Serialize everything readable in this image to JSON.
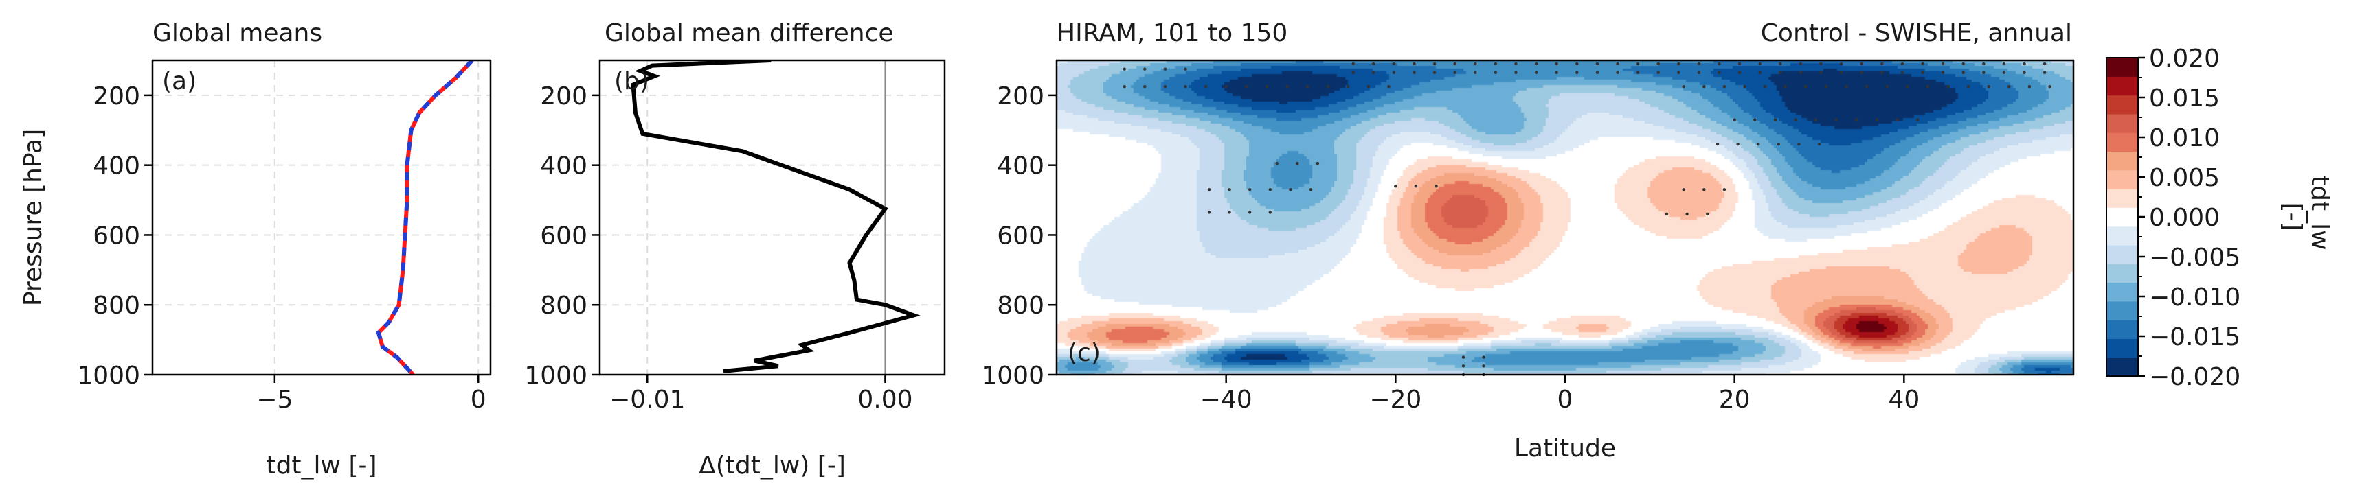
{
  "colors": {
    "mean_control": "#ff1a1a",
    "mean_swishe": "#1f3fd6",
    "difference": "#000000",
    "scale": [
      "#08306b",
      "#08519c",
      "#2171b5",
      "#4292c6",
      "#6baed6",
      "#9ecae1",
      "#c6dbef",
      "#deebf7",
      "#ffffff",
      "#fee0d2",
      "#fcbba1",
      "#f4a582",
      "#e6735b",
      "#d6604d",
      "#c0392b",
      "#a50f15",
      "#67000d"
    ]
  },
  "panel_a": {
    "title": "Global means",
    "tag": "(a)",
    "xlabel": "tdt_lw [-]",
    "ylabel": "Pressure [hPa]"
  },
  "panel_b": {
    "title": "Global mean difference",
    "tag": "(b)",
    "xlabel": "Δ(tdt_lw) [-]"
  },
  "panel_c": {
    "title_left": "HIRAM, 101 to 150",
    "title_right": "Control - SWISHE, annual",
    "tag": "(c)",
    "xlabel": "Latitude",
    "colorbar_label": "tdt_lw\n[-]"
  },
  "chart_data": [
    {
      "type": "line",
      "panel": "a",
      "title": "Global means",
      "xlabel": "tdt_lw [-]",
      "ylabel": "Pressure [hPa]",
      "xlim": [
        -8,
        0.3
      ],
      "ylim": [
        1000,
        100
      ],
      "y_inverted": true,
      "xticks": [
        -5,
        0
      ],
      "xtick_labels": [
        "−5",
        "0"
      ],
      "yticks": [
        200,
        400,
        600,
        800,
        1000
      ],
      "ytick_labels": [
        "200",
        "400",
        "600",
        "800",
        "1000"
      ],
      "grid": true,
      "y": [
        100,
        150,
        200,
        250,
        300,
        400,
        500,
        600,
        700,
        800,
        850,
        880,
        920,
        950,
        1000
      ],
      "series": [
        {
          "color_key": "mean_control",
          "style": "solid",
          "x": [
            -0.15,
            -0.55,
            -1.05,
            -1.45,
            -1.65,
            -1.75,
            -1.75,
            -1.8,
            -1.85,
            -1.95,
            -2.2,
            -2.45,
            -2.35,
            -2.0,
            -1.6
          ]
        },
        {
          "color_key": "mean_swishe",
          "style": "dashed",
          "x": [
            -0.15,
            -0.55,
            -1.05,
            -1.45,
            -1.65,
            -1.75,
            -1.75,
            -1.8,
            -1.85,
            -1.95,
            -2.2,
            -2.45,
            -2.35,
            -2.0,
            -1.6
          ]
        }
      ]
    },
    {
      "type": "line",
      "panel": "b",
      "title": "Global mean difference",
      "xlabel": "Δ(tdt_lw) [-]",
      "xlim": [
        -0.012,
        0.0025
      ],
      "ylim": [
        1000,
        100
      ],
      "y_inverted": true,
      "xticks": [
        -0.01,
        0.0
      ],
      "xtick_labels": [
        "−0.01",
        "0.00"
      ],
      "yticks": [
        200,
        400,
        600,
        800,
        1000
      ],
      "ytick_labels": [
        "200",
        "400",
        "600",
        "800",
        "1000"
      ],
      "grid": true,
      "zero_line": true,
      "series": [
        {
          "color_key": "difference",
          "x": [
            -0.0048,
            -0.0098,
            -0.0103,
            -0.0097,
            -0.0106,
            -0.0105,
            -0.0102,
            -0.006,
            -0.0015,
            0.0,
            -0.0008,
            -0.0015,
            -0.0013,
            -0.0012,
            0.0,
            0.0012,
            -0.0015,
            -0.0035,
            -0.0032,
            -0.0055,
            -0.0045,
            -0.0068
          ],
          "y": [
            100,
            115,
            130,
            145,
            170,
            250,
            310,
            360,
            470,
            525,
            600,
            680,
            730,
            785,
            800,
            830,
            880,
            915,
            930,
            960,
            975,
            990
          ]
        }
      ]
    },
    {
      "type": "heatmap",
      "panel": "c",
      "title": "HIRAM, 101 to 150",
      "subtitle": "Control - SWISHE, annual",
      "xlabel": "Latitude",
      "xlim": [
        -60,
        60
      ],
      "ylim": [
        1000,
        100
      ],
      "y_inverted": true,
      "xticks": [
        -40,
        -20,
        0,
        20,
        40
      ],
      "xtick_labels": [
        "−40",
        "−20",
        "0",
        "20",
        "40"
      ],
      "yticks": [
        200,
        400,
        600,
        800,
        1000
      ],
      "ytick_labels": [
        "200",
        "400",
        "600",
        "800",
        "1000"
      ],
      "colorbar": {
        "range": [
          -0.02,
          0.02
        ],
        "ticks": [
          0.02,
          0.015,
          0.01,
          0.005,
          0.0,
          -0.005,
          -0.01,
          -0.015,
          -0.02
        ],
        "tick_labels": [
          "0.020",
          "0.015",
          "0.010",
          "0.005",
          "0.000",
          "−0.005",
          "−0.010",
          "−0.015",
          "−0.020"
        ],
        "label": "tdt_lw [-]"
      },
      "features": [
        {
          "lat": -35,
          "p": 180,
          "value": -0.017,
          "slat": 16,
          "sp": 70
        },
        {
          "lat": 38,
          "p": 200,
          "value": -0.018,
          "slat": 18,
          "sp": 80
        },
        {
          "lat": 5,
          "p": 120,
          "value": -0.01,
          "slat": 25,
          "sp": 40
        },
        {
          "lat": -32,
          "p": 420,
          "value": -0.011,
          "slat": 7,
          "sp": 130
        },
        {
          "lat": 32,
          "p": 380,
          "value": -0.012,
          "slat": 10,
          "sp": 110
        },
        {
          "lat": -12,
          "p": 530,
          "value": 0.012,
          "slat": 6,
          "sp": 110
        },
        {
          "lat": 17,
          "p": 470,
          "value": 0.01,
          "slat": 6,
          "sp": 90
        },
        {
          "lat": -8,
          "p": 300,
          "value": -0.009,
          "slat": 5,
          "sp": 70
        },
        {
          "lat": 36,
          "p": 870,
          "value": 0.018,
          "slat": 5,
          "sp": 45
        },
        {
          "lat": 30,
          "p": 720,
          "value": 0.006,
          "slat": 10,
          "sp": 100
        },
        {
          "lat": -50,
          "p": 890,
          "value": 0.012,
          "slat": 6,
          "sp": 40
        },
        {
          "lat": -36,
          "p": 950,
          "value": -0.018,
          "slat": 8,
          "sp": 30
        },
        {
          "lat": -5,
          "p": 955,
          "value": -0.012,
          "slat": 12,
          "sp": 35
        },
        {
          "lat": -15,
          "p": 880,
          "value": 0.008,
          "slat": 6,
          "sp": 30
        },
        {
          "lat": 4,
          "p": 880,
          "value": 0.007,
          "slat": 4,
          "sp": 30
        },
        {
          "lat": 17,
          "p": 920,
          "value": -0.011,
          "slat": 10,
          "sp": 40
        },
        {
          "lat": 57,
          "p": 985,
          "value": -0.016,
          "slat": 5,
          "sp": 25
        },
        {
          "lat": -57,
          "p": 975,
          "value": -0.012,
          "slat": 4,
          "sp": 30
        },
        {
          "lat": 25,
          "p": 560,
          "value": -0.005,
          "slat": 8,
          "sp": 120
        },
        {
          "lat": 52,
          "p": 620,
          "value": 0.004,
          "slat": 6,
          "sp": 120
        },
        {
          "lat": -45,
          "p": 700,
          "value": -0.003,
          "slat": 10,
          "sp": 150
        }
      ],
      "stipple_regions": [
        {
          "lat": [
            -52,
            -44
          ],
          "p": [
            125,
            135
          ]
        },
        {
          "lat": [
            -25,
            57
          ],
          "p": [
            110,
            140
          ]
        },
        {
          "lat": [
            -52,
            -20
          ],
          "p": [
            175,
            185
          ]
        },
        {
          "lat": [
            14,
            58
          ],
          "p": [
            175,
            185
          ]
        },
        {
          "lat": [
            20,
            42
          ],
          "p": [
            270,
            280
          ]
        },
        {
          "lat": [
            18,
            30
          ],
          "p": [
            340,
            350
          ]
        },
        {
          "lat": [
            -34,
            -28
          ],
          "p": [
            395,
            405
          ]
        },
        {
          "lat": [
            -42,
            -28
          ],
          "p": [
            470,
            480
          ]
        },
        {
          "lat": [
            -42,
            -34
          ],
          "p": [
            535,
            545
          ]
        },
        {
          "lat": [
            -20,
            -14
          ],
          "p": [
            460,
            470
          ]
        },
        {
          "lat": [
            14,
            20
          ],
          "p": [
            470,
            480
          ]
        },
        {
          "lat": [
            12,
            18
          ],
          "p": [
            540,
            550
          ]
        },
        {
          "lat": [
            -12,
            -8
          ],
          "p": [
            950,
            1000
          ]
        }
      ]
    }
  ]
}
